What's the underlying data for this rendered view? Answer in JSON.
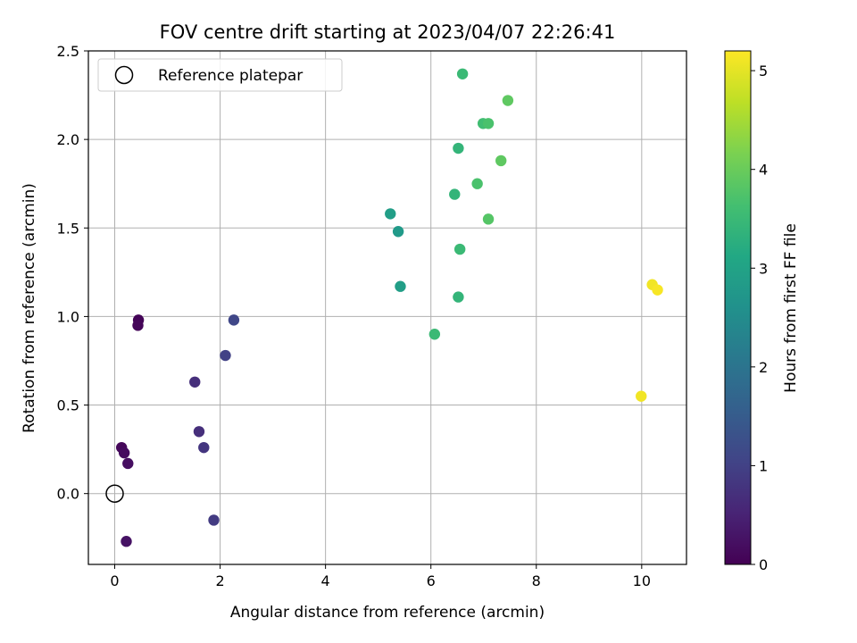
{
  "chart_data": {
    "type": "scatter",
    "title": "FOV centre drift starting at 2023/04/07 22:26:41",
    "xlabel": "Angular distance from reference (arcmin)",
    "ylabel": "Rotation from reference (arcmin)",
    "xlim": [
      -0.5,
      10.85
    ],
    "ylim": [
      -0.4,
      2.5
    ],
    "xticks": [
      0,
      2,
      4,
      6,
      8,
      10
    ],
    "yticks": [
      0.0,
      0.5,
      1.0,
      1.5,
      2.0,
      2.5
    ],
    "xtick_labels": [
      "0",
      "2",
      "4",
      "6",
      "8",
      "10"
    ],
    "ytick_labels": [
      "0.0",
      "0.5",
      "1.0",
      "1.5",
      "2.0",
      "2.5"
    ],
    "grid": true,
    "legend_position": "top-left",
    "legend": [
      {
        "label": "Reference platepar",
        "marker": "open-circle",
        "x": 0,
        "y": 0
      }
    ],
    "colorbar": {
      "label": "Hours from first FF file",
      "colormap": "viridis",
      "range": [
        0,
        5.2
      ],
      "ticks": [
        0,
        1,
        2,
        3,
        4,
        5
      ],
      "tick_labels": [
        "0",
        "1",
        "2",
        "3",
        "4",
        "5"
      ]
    },
    "points": [
      {
        "x": 0.13,
        "y": 0.26,
        "c": 0.1
      },
      {
        "x": 0.18,
        "y": 0.23,
        "c": 0.15
      },
      {
        "x": 0.25,
        "y": 0.17,
        "c": 0.2
      },
      {
        "x": 0.22,
        "y": -0.27,
        "c": 0.25
      },
      {
        "x": 0.45,
        "y": 0.98,
        "c": 0.05
      },
      {
        "x": 0.44,
        "y": 0.95,
        "c": 0.08
      },
      {
        "x": 1.52,
        "y": 0.63,
        "c": 0.7
      },
      {
        "x": 1.6,
        "y": 0.35,
        "c": 0.7
      },
      {
        "x": 1.69,
        "y": 0.26,
        "c": 0.8
      },
      {
        "x": 1.88,
        "y": -0.15,
        "c": 0.9
      },
      {
        "x": 2.1,
        "y": 0.78,
        "c": 1.0
      },
      {
        "x": 2.26,
        "y": 0.98,
        "c": 1.1
      },
      {
        "x": 5.23,
        "y": 1.58,
        "c": 2.9
      },
      {
        "x": 5.38,
        "y": 1.48,
        "c": 2.8
      },
      {
        "x": 5.42,
        "y": 1.17,
        "c": 2.9
      },
      {
        "x": 6.07,
        "y": 0.9,
        "c": 3.5
      },
      {
        "x": 6.45,
        "y": 1.69,
        "c": 3.4
      },
      {
        "x": 6.52,
        "y": 1.95,
        "c": 3.4
      },
      {
        "x": 6.52,
        "y": 1.11,
        "c": 3.4
      },
      {
        "x": 6.55,
        "y": 1.38,
        "c": 3.5
      },
      {
        "x": 6.6,
        "y": 2.37,
        "c": 3.5
      },
      {
        "x": 6.88,
        "y": 1.75,
        "c": 3.7
      },
      {
        "x": 6.99,
        "y": 2.09,
        "c": 3.6
      },
      {
        "x": 7.09,
        "y": 2.09,
        "c": 3.7
      },
      {
        "x": 7.09,
        "y": 1.55,
        "c": 3.8
      },
      {
        "x": 7.33,
        "y": 1.88,
        "c": 3.9
      },
      {
        "x": 7.46,
        "y": 2.22,
        "c": 3.9
      },
      {
        "x": 9.99,
        "y": 0.55,
        "c": 5.1
      },
      {
        "x": 10.2,
        "y": 1.18,
        "c": 5.1
      },
      {
        "x": 10.3,
        "y": 1.15,
        "c": 5.15
      }
    ]
  }
}
